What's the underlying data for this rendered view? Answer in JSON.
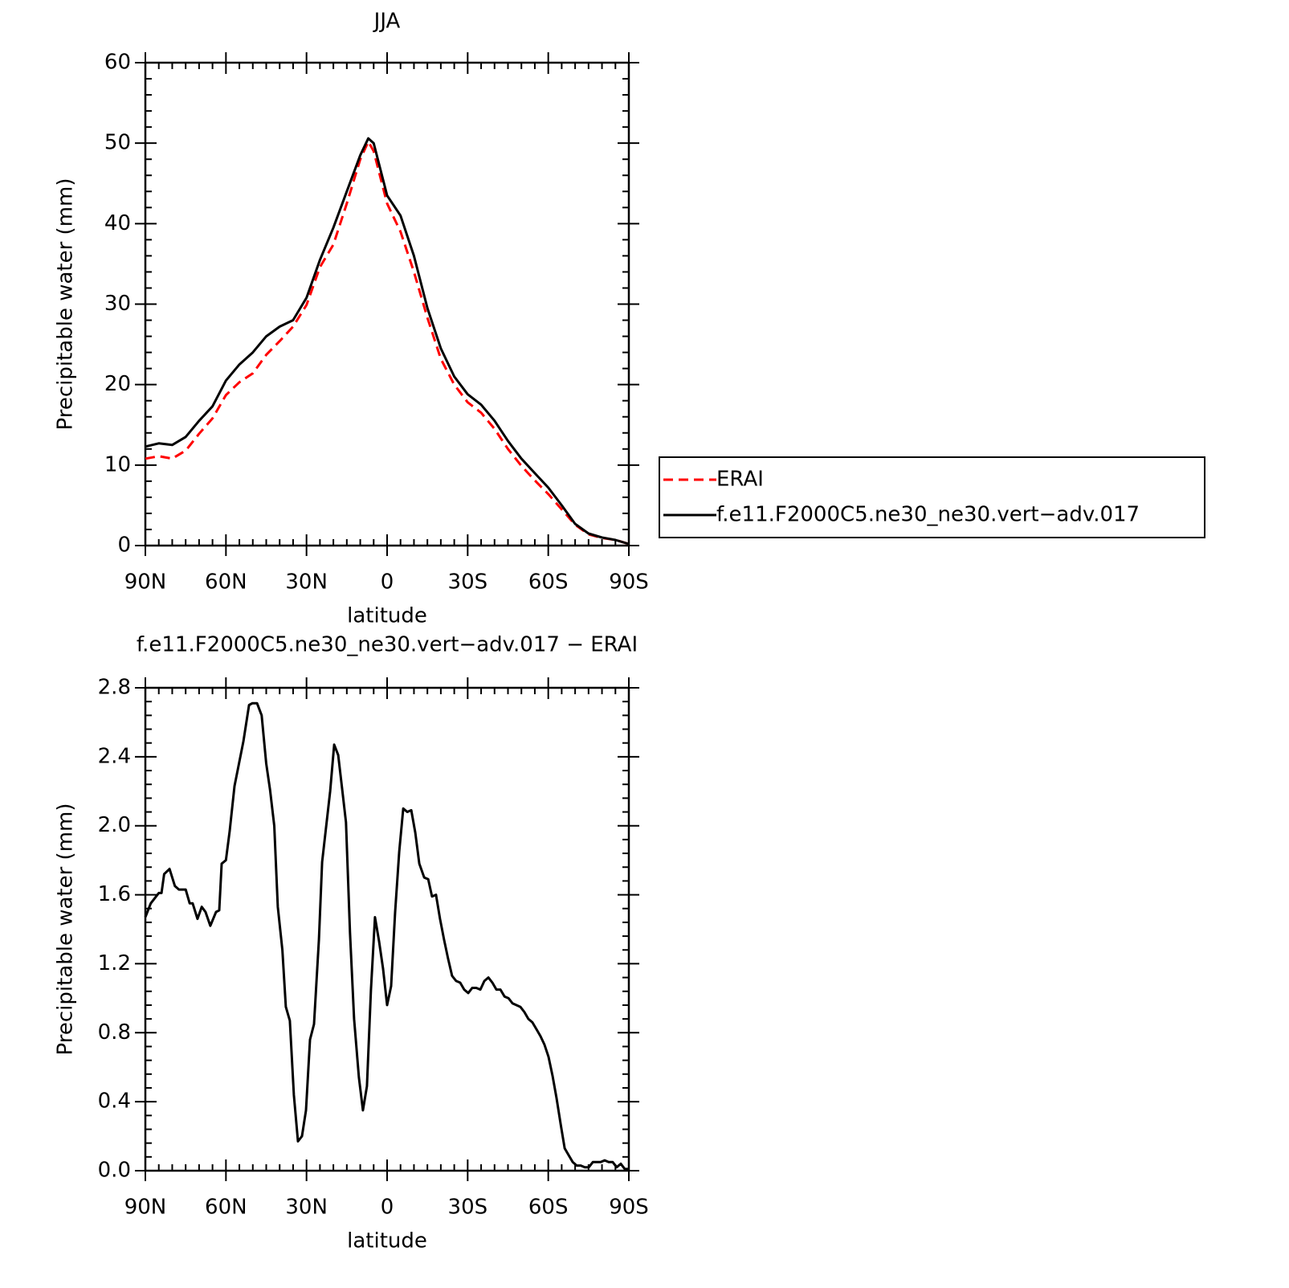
{
  "chart_data": [
    {
      "type": "line",
      "title": "JJA",
      "xlabel": "latitude",
      "ylabel": "Precipitable water (mm)",
      "x": [
        90,
        85,
        80,
        75,
        70,
        65,
        60,
        55,
        50,
        45,
        40,
        35,
        30,
        25,
        20,
        15,
        10,
        7,
        5,
        0,
        -5,
        -10,
        -15,
        -20,
        -25,
        -30,
        -35,
        -40,
        -45,
        -50,
        -55,
        -60,
        -65,
        -70,
        -75,
        -80,
        -85,
        -90
      ],
      "series": [
        {
          "name": "ERAI",
          "color": "#ff0000",
          "linestyle": "dashed",
          "values": [
            10.8,
            11.1,
            10.8,
            11.8,
            13.9,
            15.8,
            18.7,
            20.3,
            21.4,
            23.7,
            25.4,
            27.2,
            29.9,
            34.6,
            37.4,
            42.5,
            48,
            50.2,
            49,
            42.5,
            39,
            34,
            28.3,
            23.2,
            20,
            17.8,
            16.5,
            14.5,
            12,
            9.9,
            8.1,
            6.4,
            4.5,
            2.6,
            1.4,
            0.95,
            0.7,
            0.2
          ]
        },
        {
          "name": "f.e11.F2000C5.ne30_ne30.vert−adv.017",
          "color": "#000000",
          "linestyle": "solid",
          "values": [
            12.3,
            12.7,
            12.5,
            13.5,
            15.5,
            17.3,
            20.5,
            22.5,
            24,
            26,
            27.2,
            28,
            30.8,
            35.5,
            39.5,
            44,
            48.5,
            50.6,
            50,
            43.5,
            41,
            36,
            29.5,
            24.5,
            21,
            18.8,
            17.5,
            15.5,
            13,
            10.8,
            9,
            7.2,
            5,
            2.7,
            1.5,
            1.0,
            0.7,
            0.2
          ]
        }
      ],
      "xlim": [
        90,
        -90
      ],
      "xticks": [
        {
          "value": 90,
          "label": "90N"
        },
        {
          "value": 60,
          "label": "60N"
        },
        {
          "value": 30,
          "label": "30N"
        },
        0,
        {
          "value": -30,
          "label": "30S"
        },
        {
          "value": -60,
          "label": "60S"
        },
        {
          "value": -90,
          "label": "90S"
        }
      ],
      "ylim": [
        0,
        60
      ],
      "yticks": [
        0,
        10,
        20,
        30,
        40,
        50,
        60
      ],
      "legend": "right"
    },
    {
      "type": "line",
      "title": "f.e11.F2000C5.ne30_ne30.vert−adv.017 − ERAI",
      "xlabel": "latitude",
      "ylabel": "Precipitable water (mm)",
      "color": "#000000",
      "x": [
        90,
        88,
        85,
        84,
        83,
        81,
        79,
        77.5,
        75,
        73.5,
        72.4,
        70.6,
        69,
        67.6,
        65.8,
        63.7,
        62.5,
        61.6,
        60,
        58.6,
        56.8,
        53.5,
        51.4,
        50.2,
        48.4,
        46.7,
        45,
        43.6,
        42,
        40.7,
        39,
        37.7,
        36.2,
        34.7,
        33.2,
        31.7,
        30.2,
        28.7,
        27.2,
        25.4,
        24.2,
        21.2,
        19.7,
        18.2,
        16.7,
        15.3,
        13.8,
        12.3,
        10.5,
        9,
        7.5,
        6,
        4.5,
        3,
        1.5,
        0,
        -1.5,
        -3,
        -4.5,
        -6,
        -7.5,
        -9,
        -10.5,
        -12,
        -13.8,
        -15.3,
        -16.7,
        -18.2,
        -19.7,
        -21.2,
        -22.7,
        -24.2,
        -25.7,
        -27.2,
        -28.7,
        -30.2,
        -31.7,
        -33.2,
        -34.7,
        -36.2,
        -37.7,
        -39.2,
        -40.7,
        -42.2,
        -43.7,
        -45.2,
        -46.7,
        -48.1,
        -49.6,
        -51.1,
        -52.6,
        -54.1,
        -55.6,
        -57.1,
        -58.6,
        -60.1,
        -61.6,
        -63.1,
        -64.6,
        -66.1,
        -67.6,
        -69.1,
        -70.6,
        -72.1,
        -73.6,
        -75.1,
        -76.6,
        -78.1,
        -79.5,
        -81,
        -82.5,
        -84,
        -85.5,
        -87,
        -88.5,
        -90
      ],
      "values": [
        1.47,
        1.55,
        1.61,
        1.61,
        1.72,
        1.75,
        1.65,
        1.63,
        1.63,
        1.55,
        1.55,
        1.46,
        1.53,
        1.5,
        1.42,
        1.5,
        1.51,
        1.78,
        1.8,
        1.97,
        2.23,
        2.49,
        2.7,
        2.71,
        2.71,
        2.64,
        2.36,
        2.21,
        2.0,
        1.53,
        1.28,
        0.95,
        0.87,
        0.44,
        0.17,
        0.2,
        0.35,
        0.76,
        0.85,
        1.34,
        1.79,
        2.2,
        2.47,
        2.41,
        2.21,
        2.02,
        1.38,
        0.88,
        0.54,
        0.35,
        0.49,
        1.05,
        1.47,
        1.33,
        1.17,
        0.96,
        1.07,
        1.5,
        1.85,
        2.1,
        2.08,
        2.09,
        1.96,
        1.78,
        1.7,
        1.69,
        1.59,
        1.6,
        1.46,
        1.34,
        1.23,
        1.13,
        1.1,
        1.09,
        1.05,
        1.03,
        1.06,
        1.06,
        1.05,
        1.1,
        1.12,
        1.09,
        1.05,
        1.05,
        1.01,
        1.0,
        0.97,
        0.96,
        0.95,
        0.92,
        0.88,
        0.86,
        0.82,
        0.78,
        0.73,
        0.66,
        0.55,
        0.42,
        0.27,
        0.13,
        0.09,
        0.05,
        0.03,
        0.03,
        0.02,
        0.02,
        0.05,
        0.05,
        0.05,
        0.06,
        0.05,
        0.05,
        0.02,
        0.04,
        0.01,
        0.01
      ],
      "xlim": [
        90,
        -90
      ],
      "xticks": [
        {
          "value": 90,
          "label": "90N"
        },
        {
          "value": 60,
          "label": "60N"
        },
        {
          "value": 30,
          "label": "30N"
        },
        0,
        {
          "value": -30,
          "label": "30S"
        },
        {
          "value": -60,
          "label": "60S"
        },
        {
          "value": -90,
          "label": "90S"
        }
      ],
      "ylim": [
        0,
        2.8
      ],
      "yticks": [
        {
          "value": 0,
          "label": "0.0"
        },
        0.4,
        0.8,
        1.2,
        1.6,
        {
          "value": 2,
          "label": "2.0"
        },
        2.4,
        2.8
      ]
    }
  ]
}
